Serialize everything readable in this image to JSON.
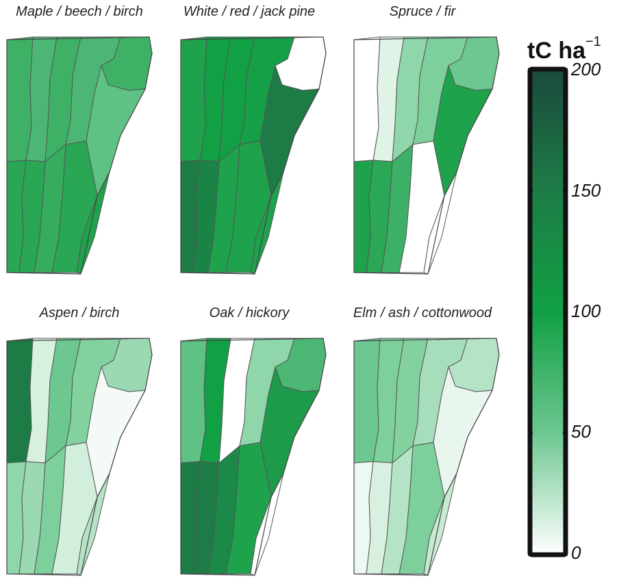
{
  "panels": [
    {
      "title": "Maple / beech / birch",
      "fills": [
        "#3fb167",
        "#4cb775",
        "#3fb167",
        "#4cb775",
        "#3fb167",
        "#5fc285",
        "#29a755",
        "#29a755",
        "#35ac5e",
        "#29a755",
        "#1fa24c"
      ]
    },
    {
      "title": "White / red / jack pine",
      "fills": [
        "#1fa24c",
        "#11a043",
        "#11a043",
        "#15a047",
        "#ffffff",
        "#1d7c46",
        "#1d7c46",
        "#1a8446",
        "#1fa24c",
        "#1fa24c",
        "#1fa24c"
      ]
    },
    {
      "title": "Spruce / fir",
      "fills": [
        "#ffffff",
        "#dff3e6",
        "#8fd6aa",
        "#7dcf9c",
        "#6dc791",
        "#1fa24c",
        "#1fa24c",
        "#2aa856",
        "#3cb066",
        "#ffffff",
        "#ffffff"
      ]
    },
    {
      "title": "Aspen / birch",
      "fills": [
        "#1d7c46",
        "#d8f0e0",
        "#6dc791",
        "#84d1a0",
        "#9ad9b1",
        "#f4fbf6",
        "#8fd6aa",
        "#9ad9b1",
        "#7dcf9c",
        "#d2eedc",
        "#b5e3c5"
      ]
    },
    {
      "title": "Oak / hickory",
      "fills": [
        "#5fc285",
        "#11a043",
        "#ffffff",
        "#8fd6aa",
        "#4cb775",
        "#1d9a4a",
        "#1d7c46",
        "#1d7c46",
        "#1b8a48",
        "#1fa24c",
        "#ffffff"
      ]
    },
    {
      "title": "Elm / ash / cottonwood",
      "fills": [
        "#6dc791",
        "#7dcf9c",
        "#84d1a0",
        "#a6ddbb",
        "#b5e3c5",
        "#e8f6ed",
        "#eef8f2",
        "#d8f0e0",
        "#b5e3c5",
        "#7dcf9c",
        "#c7ead3"
      ]
    }
  ],
  "legend": {
    "unit_main": "tC ha",
    "unit_exp": "−1",
    "ticks": [
      "200",
      "150",
      "100",
      "50",
      "0"
    ],
    "tick_values": [
      200,
      150,
      100,
      50,
      0
    ],
    "range": [
      0,
      200
    ],
    "colors": [
      "#ffffff",
      "#6dc791",
      "#11a043",
      "#1d7c46",
      "#1a4a3c"
    ]
  }
}
